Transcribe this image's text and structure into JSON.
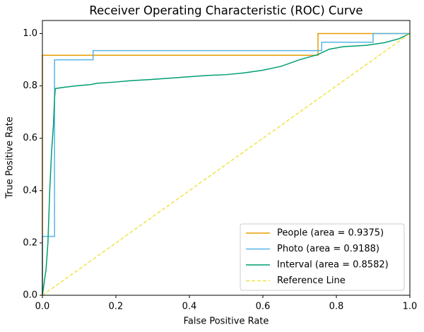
{
  "chart_data": {
    "type": "line",
    "title": "Receiver Operating Characteristic (ROC) Curve",
    "xlabel": "False Positive Rate",
    "ylabel": "True Positive Rate",
    "xlim": [
      0,
      1
    ],
    "ylim": [
      0,
      1.05
    ],
    "xticks": [
      {
        "value": 0,
        "label": "0.0"
      },
      0.2,
      0.4,
      0.6,
      0.8,
      {
        "value": 1,
        "label": "1.0"
      }
    ],
    "yticks": [
      {
        "value": 0,
        "label": "0.0"
      },
      0.2,
      0.4,
      0.6,
      0.8,
      {
        "value": 1,
        "label": "1.0"
      }
    ],
    "legend": "lower right",
    "series": [
      {
        "name": "People (area = 0.9375)",
        "color": "#e69f00",
        "linestyle": "solid",
        "x": [
          0,
          0,
          0.75,
          0.75,
          1
        ],
        "values": [
          0,
          0.917,
          0.917,
          1.0,
          1.0
        ]
      },
      {
        "name": "Photo (area = 0.9188)",
        "color": "#56b4e9",
        "linestyle": "solid",
        "x": [
          0,
          0,
          0.033,
          0.033,
          0.138,
          0.138,
          0.76,
          0.76,
          0.9,
          0.9,
          1
        ],
        "values": [
          0,
          0.225,
          0.225,
          0.9,
          0.9,
          0.935,
          0.935,
          0.967,
          0.967,
          1.0,
          1.0
        ]
      },
      {
        "name": "Interval (area = 0.8582)",
        "color": "#009e73",
        "linestyle": "solid",
        "x": [
          0,
          0.005,
          0.01,
          0.015,
          0.02,
          0.025,
          0.03,
          0.033,
          0.035,
          0.06,
          0.09,
          0.13,
          0.15,
          0.2,
          0.24,
          0.3,
          0.35,
          0.4,
          0.45,
          0.5,
          0.55,
          0.6,
          0.65,
          0.7,
          0.75,
          0.78,
          0.82,
          0.88,
          0.93,
          0.97,
          1
        ],
        "values": [
          0,
          0.05,
          0.1,
          0.2,
          0.4,
          0.55,
          0.65,
          0.75,
          0.79,
          0.795,
          0.8,
          0.805,
          0.81,
          0.815,
          0.82,
          0.825,
          0.83,
          0.835,
          0.84,
          0.843,
          0.85,
          0.86,
          0.875,
          0.9,
          0.92,
          0.94,
          0.95,
          0.955,
          0.965,
          0.98,
          1.0
        ]
      },
      {
        "name": "Reference Line",
        "color": "#f0e442",
        "linestyle": "dashed",
        "x": [
          0,
          1
        ],
        "values": [
          0,
          1
        ]
      }
    ]
  }
}
